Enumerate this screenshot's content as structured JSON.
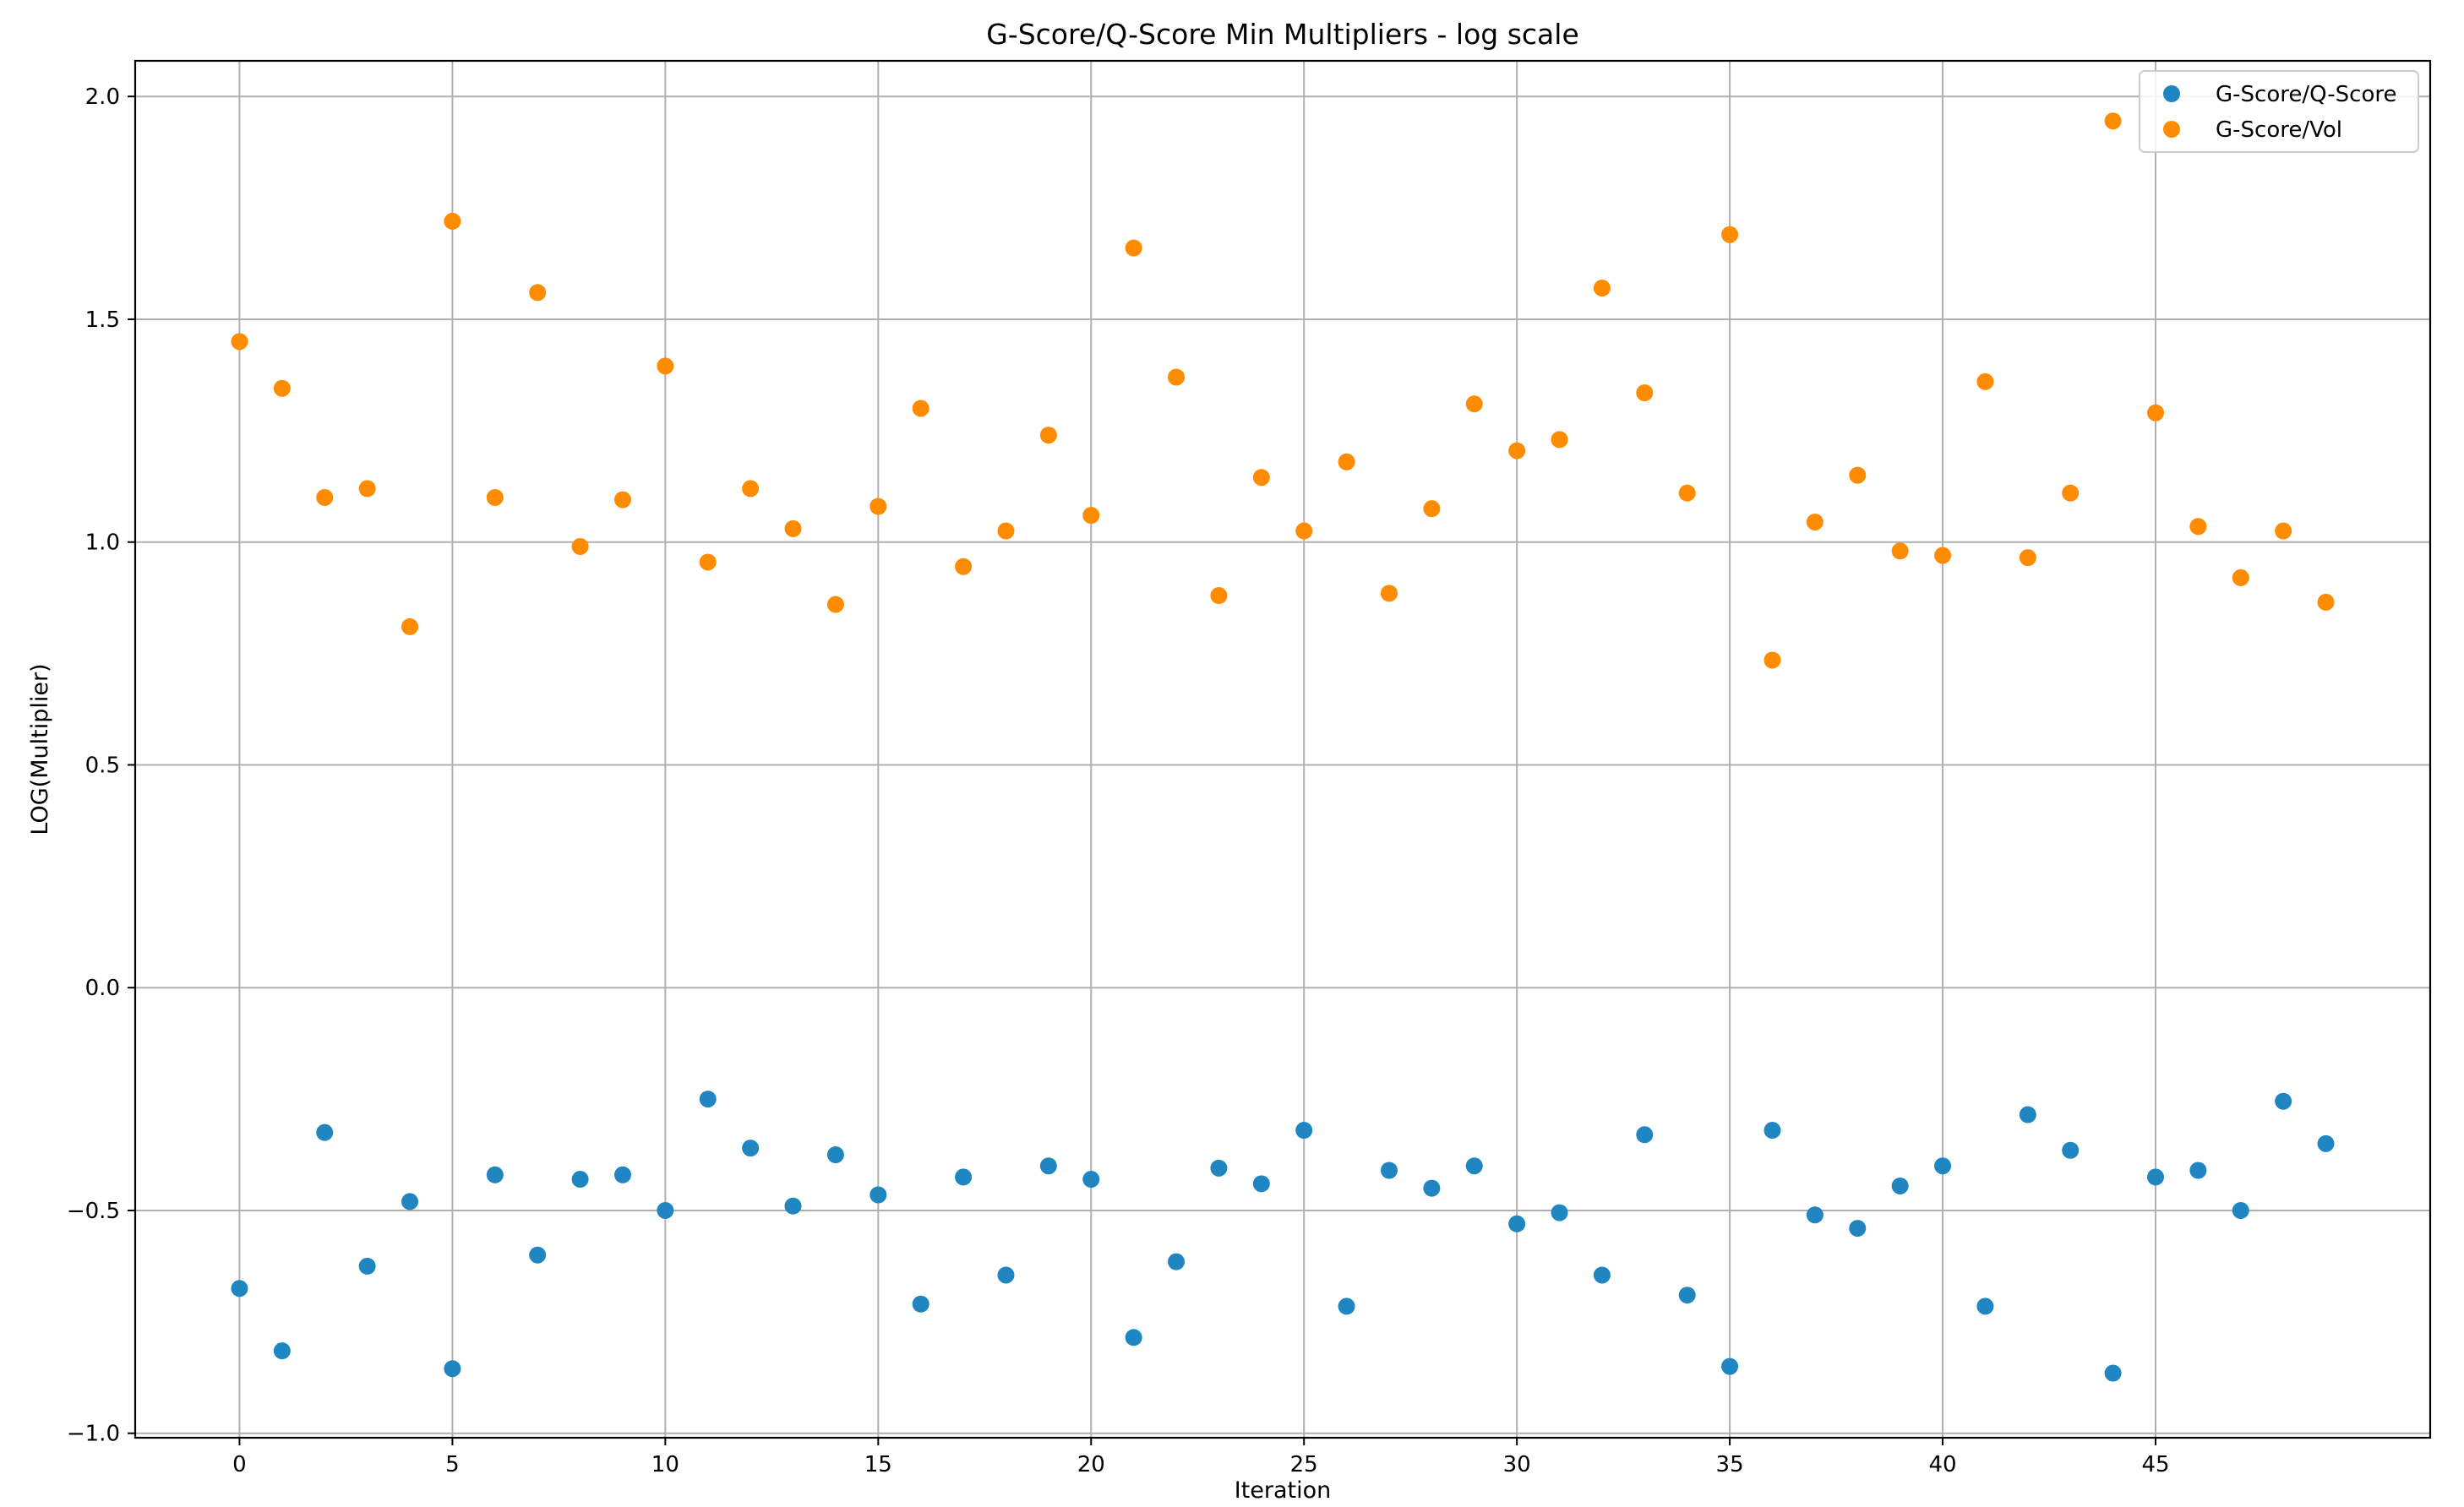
{
  "chart_data": {
    "type": "scatter",
    "title": "G-Score/Q-Score Min Multipliers - log scale",
    "xlabel": "Iteration",
    "ylabel": "LOG(Multiplier)",
    "xlim": [
      -2.45,
      51.45
    ],
    "ylim": [
      -1.01,
      2.08
    ],
    "xticks": [
      0,
      5,
      10,
      15,
      20,
      25,
      30,
      35,
      40,
      45
    ],
    "yticks": [
      -1.0,
      -0.5,
      0.0,
      0.5,
      1.0,
      1.5,
      2.0
    ],
    "ytick_labels": [
      "−1.0",
      "−0.5",
      "0.0",
      "0.5",
      "1.0",
      "1.5",
      "2.0"
    ],
    "grid": true,
    "legend_position": "top-right",
    "x": [
      0,
      1,
      2,
      3,
      4,
      5,
      6,
      7,
      8,
      9,
      10,
      11,
      12,
      13,
      14,
      15,
      16,
      17,
      18,
      19,
      20,
      21,
      22,
      23,
      24,
      25,
      26,
      27,
      28,
      29,
      30,
      31,
      32,
      33,
      34,
      35,
      36,
      37,
      38,
      39,
      40,
      41,
      42,
      43,
      44,
      45,
      46,
      47,
      48,
      49
    ],
    "series": [
      {
        "name": "G-Score/Q-Score",
        "color": "#1f86c1",
        "values": [
          -0.675,
          -0.815,
          -0.325,
          -0.625,
          -0.48,
          -0.855,
          -0.42,
          -0.6,
          -0.43,
          -0.42,
          -0.5,
          -0.25,
          -0.36,
          -0.49,
          -0.375,
          -0.465,
          -0.71,
          -0.425,
          -0.645,
          -0.4,
          -0.43,
          -0.785,
          -0.615,
          -0.405,
          -0.44,
          -0.32,
          -0.715,
          -0.41,
          -0.45,
          -0.4,
          -0.53,
          -0.505,
          -0.645,
          -0.33,
          -0.69,
          -0.85,
          -0.32,
          -0.51,
          -0.54,
          -0.445,
          -0.4,
          -0.715,
          -0.285,
          -0.365,
          -0.865,
          -0.425,
          -0.41,
          -0.5,
          -0.255,
          -0.35
        ]
      },
      {
        "name": "G-Score/Vol",
        "color": "#ff8c00",
        "values": [
          1.45,
          1.345,
          1.1,
          1.12,
          0.81,
          1.72,
          1.1,
          1.56,
          0.99,
          1.095,
          1.395,
          0.955,
          1.12,
          1.03,
          0.86,
          1.08,
          1.3,
          0.945,
          1.025,
          1.24,
          1.06,
          1.66,
          1.37,
          0.88,
          1.145,
          1.025,
          1.18,
          0.885,
          1.075,
          1.31,
          1.205,
          1.23,
          1.57,
          1.335,
          1.11,
          1.69,
          0.735,
          1.045,
          1.15,
          0.98,
          0.97,
          1.36,
          0.965,
          1.11,
          1.945,
          1.29,
          1.035,
          0.92,
          1.025,
          0.865
        ]
      }
    ]
  }
}
